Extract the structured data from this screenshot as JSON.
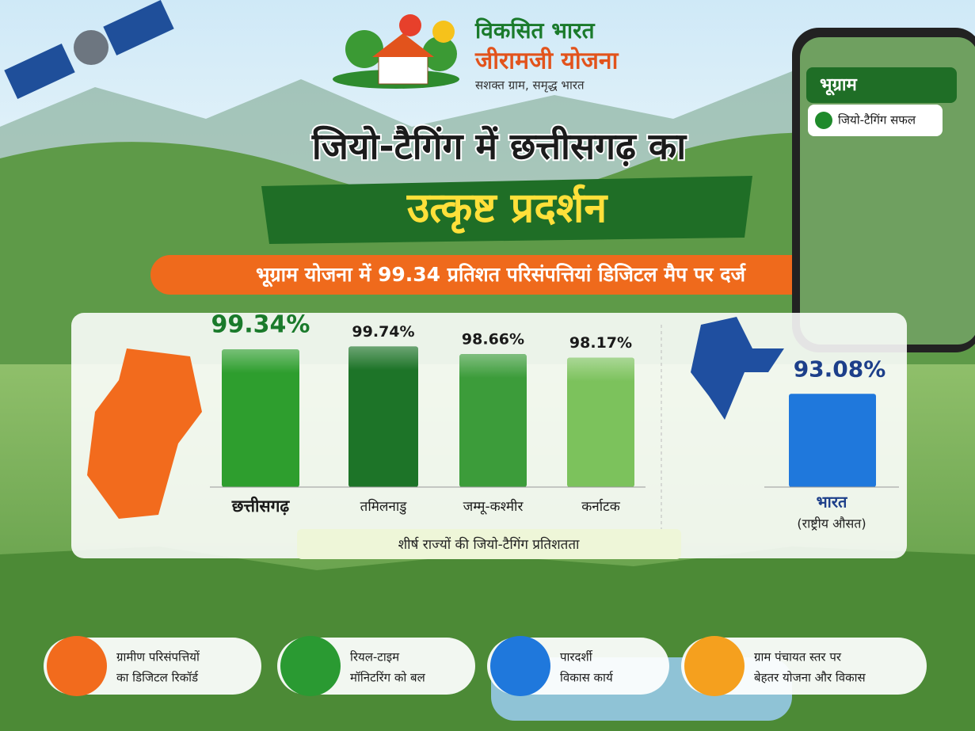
{
  "header": {
    "logo_line1": "विकसित भारत",
    "logo_line2": "जीरामजी योजना",
    "tagline": "सशक्त ग्राम, समृद्ध भारत"
  },
  "title": {
    "line1": "जियो-टैगिंग में छत्तीसगढ़ का",
    "line2": "उत्कृष्ट प्रदर्शन"
  },
  "banner": "भूग्राम योजना में 99.34 प्रतिशत परिसंपत्तियां डिजिटल मैप पर दर्ज",
  "phone": {
    "app_name": "भूग्राम",
    "status": "जियो-टैगिंग सफल"
  },
  "chart_data": {
    "type": "bar",
    "caption": "शीर्ष राज्यों की जियो-टैगिंग प्रतिशतता",
    "categories": [
      "छत्तीसगढ़",
      "तमिलनाडु",
      "जम्मू-कश्मीर",
      "कर्नाटक"
    ],
    "values": [
      99.34,
      99.74,
      98.66,
      98.17
    ],
    "value_labels": [
      "99.34%",
      "99.74%",
      "98.66%",
      "98.17%"
    ],
    "colors": [
      "#2e9e2e",
      "#1d7428",
      "#3c9c3a",
      "#7cc25c"
    ],
    "ylim": [
      80,
      100
    ]
  },
  "national": {
    "value": 93.08,
    "value_label": "93.08%",
    "name": "भारत",
    "note": "(राष्ट्रीय औसत)",
    "color": "#1f78dc"
  },
  "features": [
    {
      "line1": "ग्रामीण परिसंपत्तियों",
      "line2": "का डिजिटल रिकॉर्ड",
      "color": "#f26b1d"
    },
    {
      "line1": "रियल-टाइम",
      "line2": "मॉनिटरिंग को बल",
      "color": "#2a9a32"
    },
    {
      "line1": "पारदर्शी",
      "line2": "विकास कार्य",
      "color": "#1f78dc"
    },
    {
      "line1": "ग्राम पंचायत स्तर पर",
      "line2": "बेहतर योजना और विकास",
      "color": "#f5a01e"
    }
  ]
}
